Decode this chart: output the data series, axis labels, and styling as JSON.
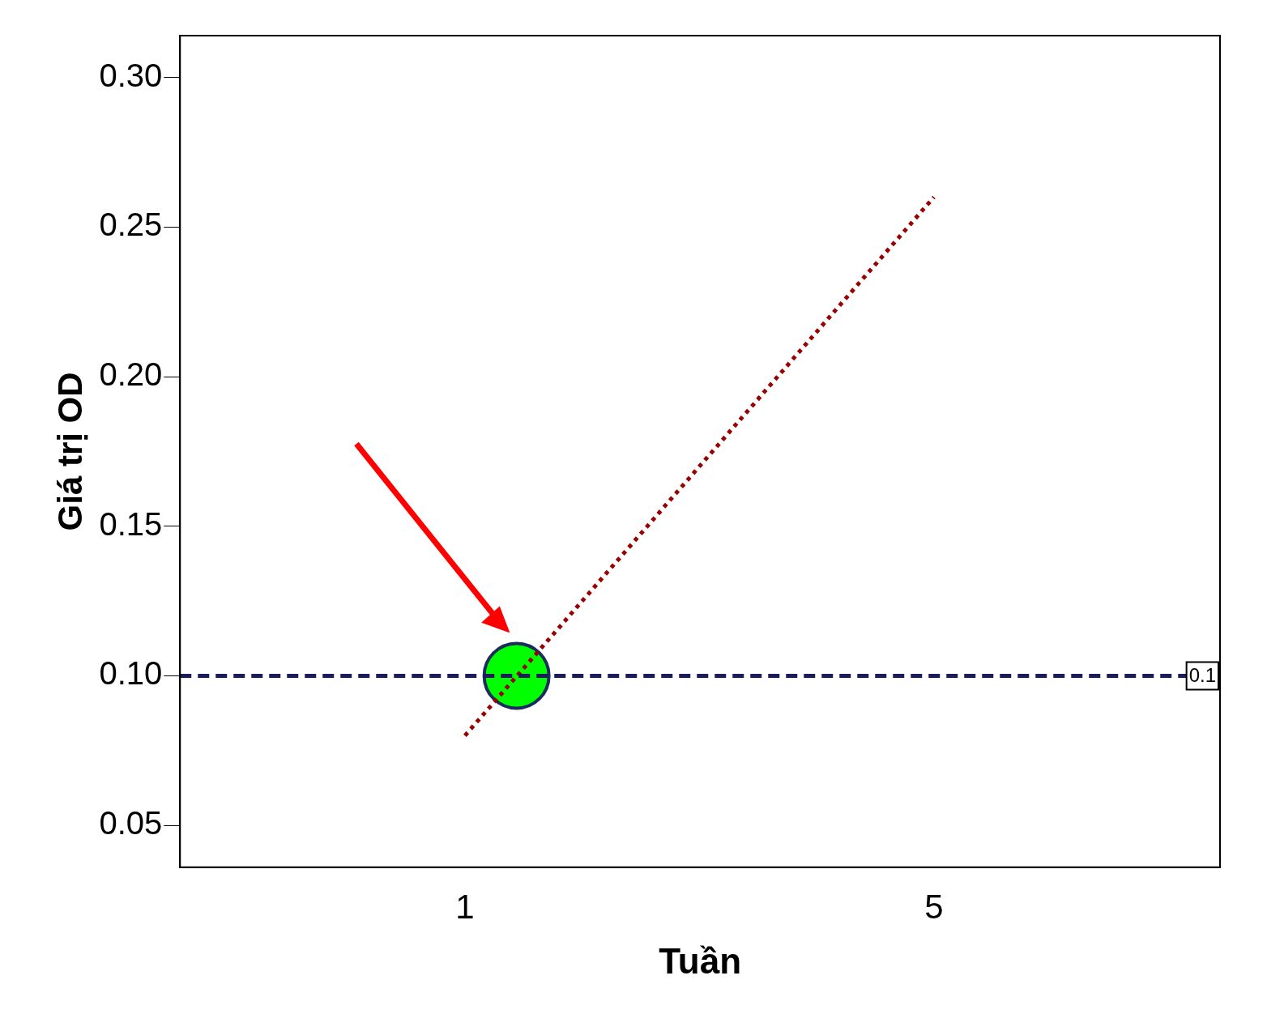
{
  "chart_data": {
    "type": "line",
    "xlabel": "Tuần",
    "ylabel": "Giá trị OD",
    "xlim": [
      -1.43,
      7.44
    ],
    "xticks": [
      1,
      5
    ],
    "ylim": [
      0.036,
      0.314
    ],
    "yticks": [
      {
        "value": 0.05,
        "label": "0.05"
      },
      {
        "value": 0.1,
        "label": "0.10"
      },
      {
        "value": 0.15,
        "label": "0.15"
      },
      {
        "value": 0.2,
        "label": "0.20"
      },
      {
        "value": 0.25,
        "label": "0.25"
      },
      {
        "value": 0.3,
        "label": "0.30"
      }
    ],
    "series": [
      {
        "color": "#990000",
        "x": [
          1,
          5
        ],
        "values": [
          0.08,
          0.26
        ],
        "line_style": "dotted",
        "marker": "none"
      },
      {
        "type": "scatter",
        "color": "#00ff00",
        "x": [
          1.44
        ],
        "values": [
          0.1
        ],
        "marker": "circle"
      }
    ],
    "ref_lines": [
      {
        "axis": "y",
        "value": 0.1,
        "label": "0.1",
        "color": "#1c1c5c",
        "line_style": "dashed"
      }
    ],
    "grid": false,
    "legend": false
  }
}
